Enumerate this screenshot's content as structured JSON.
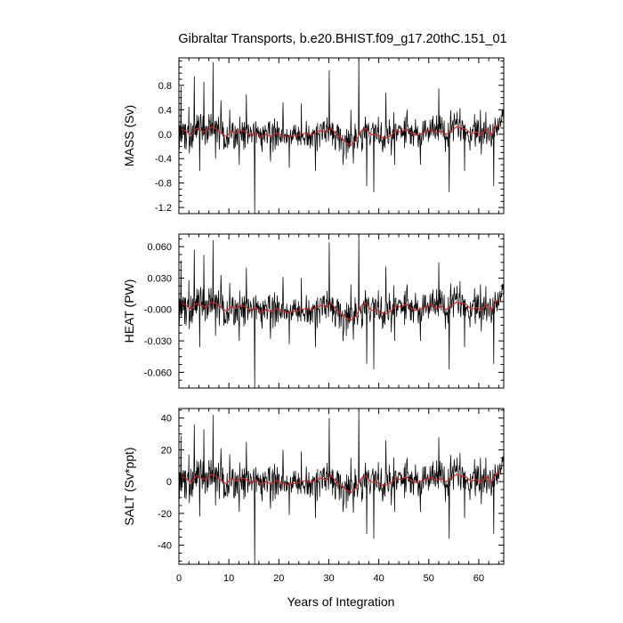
{
  "chart_data": {
    "title": "Gibraltar Transports, b.e20.BHIST.f09_g17.20thC.151_01",
    "xlabel": "Years of Integration",
    "x_range": [
      0,
      65
    ],
    "x_ticks": [
      0,
      10,
      20,
      30,
      40,
      50,
      60
    ],
    "x_tick_labels": [
      "0",
      "10",
      "20",
      "30",
      "40",
      "50",
      "60"
    ],
    "grid": false,
    "legend": "none",
    "series_colors": {
      "monthly": "#000000",
      "annual_mean": "#e02020"
    },
    "panels": [
      {
        "type": "line",
        "ylabel": "MASS (Sv)",
        "ylim": [
          -1.3,
          1.25
        ],
        "y_ticks": [
          0.8,
          0.4,
          0.0,
          -0.4,
          -0.8,
          -1.2
        ],
        "y_tick_labels": [
          "0.8",
          "0.4",
          "0.0",
          "-0.4",
          "-0.8",
          "-1.2"
        ],
        "amplitude": 0.22,
        "annual_mean": [
          0.08,
          0.05,
          -0.02,
          0.1,
          0.06,
          0.03,
          0.12,
          0.09,
          0.02,
          -0.04,
          0.05,
          0.01,
          0.07,
          0.03,
          -0.02,
          0.03,
          -0.05,
          0.0,
          -0.04,
          0.02,
          -0.02,
          -0.05,
          -0.03,
          -0.03,
          0.0,
          0.02,
          -0.02,
          0.03,
          0.06,
          0.03,
          0.1,
          0.0,
          -0.06,
          -0.14,
          -0.18,
          -0.1,
          0.06,
          0.09,
          -0.01,
          0.0,
          -0.05,
          -0.06,
          -0.02,
          0.06,
          0.03,
          0.08,
          0.02,
          -0.02,
          0.01,
          0.04,
          0.08,
          0.02,
          0.05,
          0.0,
          0.05,
          0.12,
          0.1,
          0.08,
          0.0,
          0.04,
          -0.02,
          0.09,
          -0.02,
          0.13,
          0.15
        ],
        "spikes": [
          [
            0.4,
            0.78
          ],
          [
            2.0,
            0.45
          ],
          [
            3.1,
            0.95
          ],
          [
            4.2,
            -0.6
          ],
          [
            5.0,
            0.86
          ],
          [
            6.8,
            1.18
          ],
          [
            7.3,
            -0.4
          ],
          [
            8.4,
            0.55
          ],
          [
            12.1,
            -0.5
          ],
          [
            13.5,
            0.65
          ],
          [
            15.2,
            -1.3
          ],
          [
            18.3,
            -0.45
          ],
          [
            20.8,
            0.52
          ],
          [
            22.1,
            -0.55
          ],
          [
            24.5,
            0.5
          ],
          [
            27.3,
            -0.6
          ],
          [
            30.1,
            1.05
          ],
          [
            32.8,
            -0.5
          ],
          [
            34.4,
            0.4
          ],
          [
            36.0,
            1.25
          ],
          [
            37.6,
            -0.85
          ],
          [
            39.0,
            -0.95
          ],
          [
            41.4,
            0.68
          ],
          [
            43.2,
            -0.5
          ],
          [
            45.7,
            0.4
          ],
          [
            48.3,
            -0.5
          ],
          [
            52.0,
            0.75
          ],
          [
            54.1,
            -0.95
          ],
          [
            57.2,
            -0.6
          ],
          [
            60.3,
            0.4
          ],
          [
            63.0,
            -0.85
          ],
          [
            64.7,
            0.4
          ]
        ]
      },
      {
        "type": "line",
        "ylabel": "HEAT (PW)",
        "ylim": [
          -0.075,
          0.072
        ],
        "y_ticks": [
          0.06,
          0.03,
          0.0,
          -0.03,
          -0.06
        ],
        "y_tick_labels": [
          "0.060",
          "0.030",
          "-0.000",
          "-0.030",
          "-0.060"
        ],
        "amplitude": 0.014,
        "annual_mean": [
          0.006,
          0.004,
          0.0,
          0.006,
          0.004,
          0.002,
          0.007,
          0.006,
          0.002,
          -0.002,
          0.003,
          0.001,
          0.004,
          0.002,
          -0.001,
          0.002,
          -0.003,
          0.0,
          -0.002,
          0.001,
          -0.001,
          -0.003,
          -0.002,
          -0.002,
          0.0,
          0.001,
          -0.001,
          0.002,
          0.004,
          0.002,
          0.006,
          0.0,
          -0.004,
          -0.008,
          -0.01,
          -0.006,
          0.004,
          0.006,
          -0.001,
          0.0,
          -0.003,
          -0.004,
          -0.001,
          0.004,
          0.002,
          0.005,
          0.001,
          -0.001,
          0.001,
          0.002,
          0.005,
          0.001,
          0.003,
          0.0,
          0.003,
          0.007,
          0.006,
          0.005,
          0.0,
          0.002,
          -0.001,
          0.005,
          -0.001,
          0.008,
          0.009
        ],
        "spikes": [
          [
            0.4,
            0.047
          ],
          [
            2.0,
            0.028
          ],
          [
            3.1,
            0.057
          ],
          [
            4.2,
            -0.036
          ],
          [
            5.0,
            0.052
          ],
          [
            6.8,
            0.066
          ],
          [
            7.3,
            -0.025
          ],
          [
            8.4,
            0.033
          ],
          [
            12.1,
            -0.03
          ],
          [
            13.5,
            0.04
          ],
          [
            15.2,
            -0.075
          ],
          [
            18.3,
            -0.028
          ],
          [
            20.8,
            0.031
          ],
          [
            22.1,
            -0.033
          ],
          [
            24.5,
            0.03
          ],
          [
            27.3,
            -0.036
          ],
          [
            30.1,
            0.064
          ],
          [
            32.8,
            -0.03
          ],
          [
            34.4,
            0.024
          ],
          [
            36.0,
            0.071
          ],
          [
            37.6,
            -0.052
          ],
          [
            39.0,
            -0.057
          ],
          [
            41.4,
            0.041
          ],
          [
            43.2,
            -0.03
          ],
          [
            45.7,
            0.024
          ],
          [
            48.3,
            -0.03
          ],
          [
            52.0,
            0.045
          ],
          [
            54.1,
            -0.057
          ],
          [
            57.2,
            -0.036
          ],
          [
            60.3,
            0.024
          ],
          [
            63.0,
            -0.052
          ],
          [
            64.7,
            0.024
          ]
        ]
      },
      {
        "type": "line",
        "ylabel": "SALT (Sv*ppt)",
        "ylim": [
          -52,
          46
        ],
        "y_ticks": [
          40,
          20,
          0,
          -20,
          -40
        ],
        "y_tick_labels": [
          "40",
          "20",
          "0",
          "-20",
          "-40"
        ],
        "amplitude": 9.5,
        "annual_mean": [
          3.0,
          2.0,
          -0.8,
          3.8,
          2.2,
          1.2,
          4.5,
          3.4,
          0.8,
          -1.5,
          2.0,
          0.4,
          2.6,
          1.2,
          -0.8,
          1.2,
          -2.0,
          0.0,
          -1.5,
          0.8,
          -0.8,
          -2.0,
          -1.2,
          -1.2,
          0.0,
          0.8,
          -0.8,
          1.2,
          2.2,
          1.2,
          3.8,
          0.0,
          -2.2,
          -5.2,
          -6.8,
          -3.8,
          2.2,
          3.4,
          -0.4,
          0.0,
          -2.0,
          -2.2,
          -0.8,
          2.2,
          1.2,
          3.0,
          0.8,
          -0.8,
          0.4,
          1.5,
          3.0,
          0.8,
          2.0,
          0.0,
          2.0,
          4.5,
          3.8,
          3.0,
          0.0,
          1.5,
          -0.8,
          3.4,
          -0.8,
          4.9,
          5.6
        ],
        "spikes": [
          [
            0.4,
            29
          ],
          [
            2.0,
            17
          ],
          [
            3.1,
            36
          ],
          [
            4.2,
            -22
          ],
          [
            5.0,
            33
          ],
          [
            6.8,
            42
          ],
          [
            7.3,
            -15
          ],
          [
            8.4,
            21
          ],
          [
            12.1,
            -19
          ],
          [
            13.5,
            25
          ],
          [
            15.2,
            -52
          ],
          [
            18.3,
            -17
          ],
          [
            20.8,
            20
          ],
          [
            22.1,
            -21
          ],
          [
            24.5,
            19
          ],
          [
            27.3,
            -23
          ],
          [
            30.1,
            40
          ],
          [
            32.8,
            -19
          ],
          [
            34.4,
            15
          ],
          [
            36.0,
            45
          ],
          [
            37.6,
            -33
          ],
          [
            39.0,
            -36
          ],
          [
            41.4,
            26
          ],
          [
            43.2,
            -19
          ],
          [
            45.7,
            15
          ],
          [
            48.3,
            -19
          ],
          [
            52.0,
            28
          ],
          [
            54.1,
            -36
          ],
          [
            57.2,
            -23
          ],
          [
            60.3,
            15
          ],
          [
            63.0,
            -33
          ],
          [
            64.7,
            15
          ]
        ]
      }
    ]
  }
}
